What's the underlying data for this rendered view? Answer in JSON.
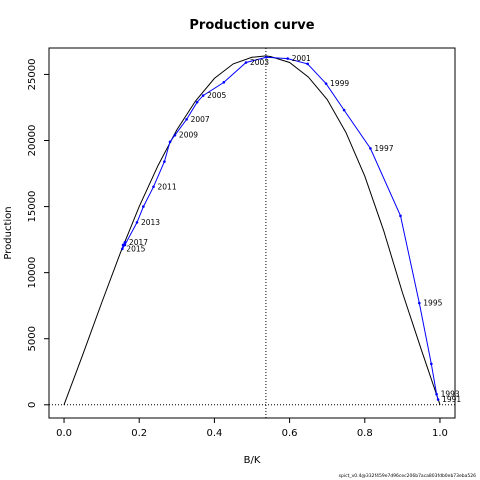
{
  "chart_data": {
    "type": "line",
    "title": "Production curve",
    "xlabel": "B/K",
    "ylabel": "Production",
    "xlim": [
      -0.04,
      1.04
    ],
    "ylim": [
      -1000,
      27000
    ],
    "xticks": [
      0.0,
      0.2,
      0.4,
      0.6,
      0.8,
      1.0
    ],
    "xtick_labels": [
      "0.0",
      "0.2",
      "0.4",
      "0.6",
      "0.8",
      "1.0"
    ],
    "yticks": [
      0,
      5000,
      10000,
      15000,
      20000,
      25000
    ],
    "ytick_labels": [
      "0",
      "5000",
      "10000",
      "15000",
      "20000",
      "25000"
    ],
    "grid": false,
    "reference_lines": {
      "vertical_x": 0.537,
      "horizontal_y": 0
    },
    "model_curve": {
      "color": "#000000",
      "x": [
        0.0,
        0.05,
        0.1,
        0.15,
        0.2,
        0.25,
        0.3,
        0.35,
        0.4,
        0.45,
        0.5,
        0.537,
        0.55,
        0.6,
        0.65,
        0.7,
        0.75,
        0.8,
        0.85,
        0.9,
        0.95,
        1.0
      ],
      "y": [
        0,
        3800,
        7700,
        11500,
        15000,
        18100,
        20800,
        23000,
        24700,
        25800,
        26300,
        26400,
        26350,
        25900,
        24800,
        23100,
        20600,
        17300,
        13200,
        8500,
        4200,
        0
      ]
    },
    "series": [
      {
        "color": "#0000ff",
        "x": [
          0.995,
          0.991,
          0.977,
          0.945,
          0.895,
          0.815,
          0.745,
          0.697,
          0.648,
          0.595,
          0.538,
          0.484,
          0.425,
          0.37,
          0.354,
          0.326,
          0.295,
          0.282,
          0.267,
          0.238,
          0.211,
          0.194,
          0.162,
          0.155,
          0.157,
          0.162
        ],
        "y": [
          400,
          800,
          3100,
          7700,
          14300,
          19400,
          22300,
          24300,
          25800,
          26200,
          26300,
          25900,
          24400,
          23400,
          22900,
          21600,
          20400,
          19900,
          18400,
          16500,
          15000,
          13800,
          12100,
          11800,
          12100,
          12300
        ]
      }
    ],
    "point_labels": [
      {
        "text": "1991",
        "x": 0.995,
        "y": 400
      },
      {
        "text": "1993",
        "x": 0.991,
        "y": 800
      },
      {
        "text": "1995",
        "x": 0.945,
        "y": 7700
      },
      {
        "text": "1997",
        "x": 0.815,
        "y": 19400
      },
      {
        "text": "1999",
        "x": 0.697,
        "y": 24300
      },
      {
        "text": "2001",
        "x": 0.595,
        "y": 26200
      },
      {
        "text": "2003",
        "x": 0.484,
        "y": 25900
      },
      {
        "text": "2005",
        "x": 0.37,
        "y": 23400
      },
      {
        "text": "2007",
        "x": 0.326,
        "y": 21600
      },
      {
        "text": "2009",
        "x": 0.295,
        "y": 20400
      },
      {
        "text": "2011",
        "x": 0.238,
        "y": 16500
      },
      {
        "text": "2013",
        "x": 0.194,
        "y": 13800
      },
      {
        "text": "2015",
        "x": 0.155,
        "y": 11800
      },
      {
        "text": "2017",
        "x": 0.162,
        "y": 12300
      }
    ]
  },
  "footer_text": "spict_v0.4@332f459e7d96cec206b7aca803fdb0eb73eba526"
}
